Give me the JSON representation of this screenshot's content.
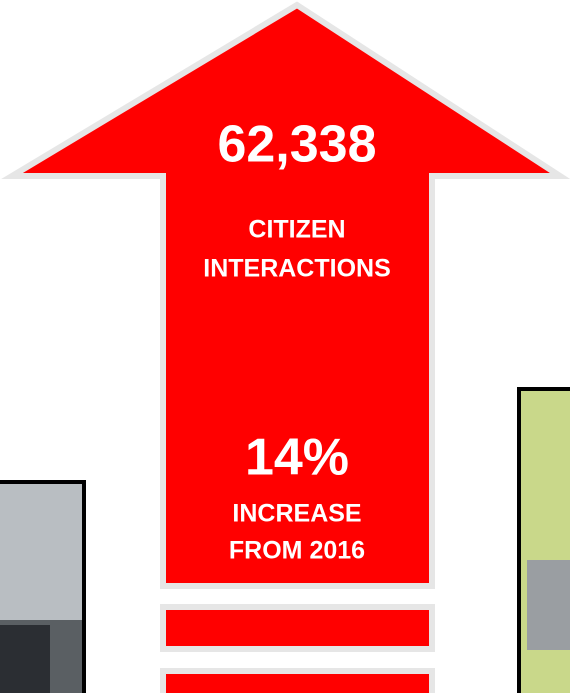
{
  "infographic": {
    "total": "62,338",
    "total_label": [
      "CITIZEN",
      "INTERACTIONS"
    ],
    "change": "14%",
    "change_label": [
      "INCREASE",
      "FROM 2016"
    ]
  }
}
